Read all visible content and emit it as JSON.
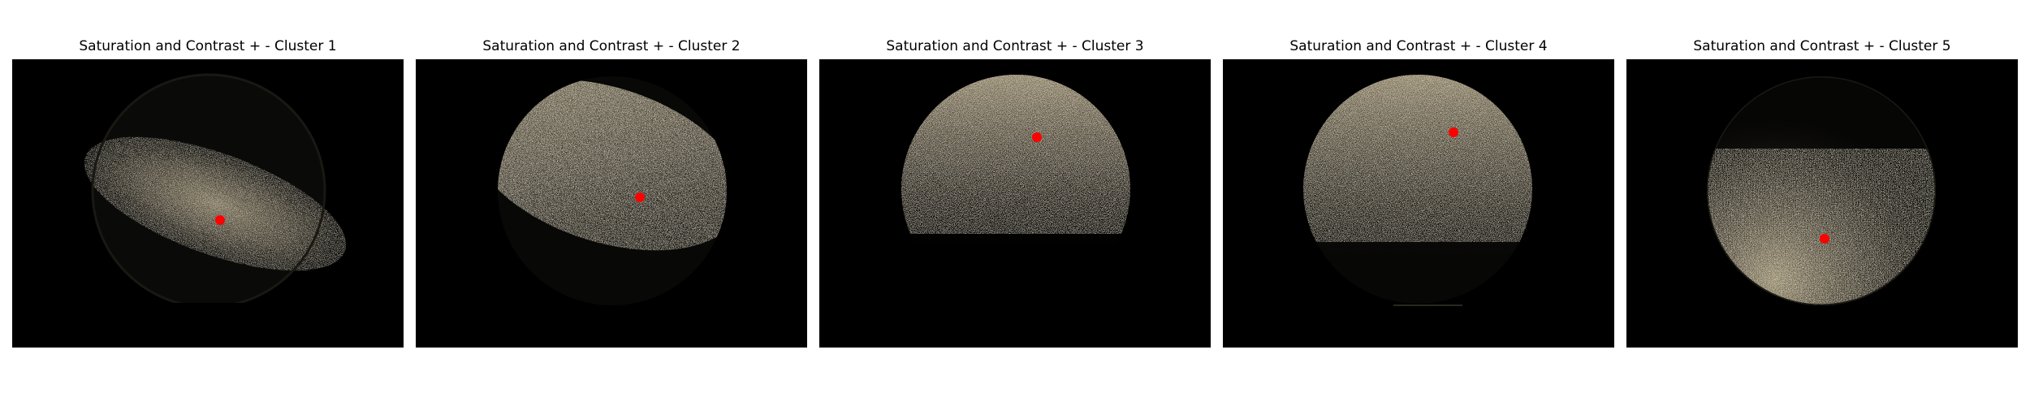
{
  "figure": {
    "panels": [
      {
        "title": "Saturation and Contrast + - Cluster 1",
        "blob": "lower-band",
        "dot_color": "#ff0000"
      },
      {
        "title": "Saturation and Contrast + - Cluster 2",
        "blob": "upper-band",
        "dot_color": "#ff0000"
      },
      {
        "title": "Saturation and Contrast + - Cluster 3",
        "blob": "top-cap",
        "dot_color": "#ff0000"
      },
      {
        "title": "Saturation and Contrast + - Cluster 4",
        "blob": "top-cap",
        "dot_color": "#ff0000"
      },
      {
        "title": "Saturation and Contrast + - Cluster 5",
        "blob": "bottom-left",
        "dot_color": "#ff0000"
      }
    ],
    "colors": {
      "background": "#000000",
      "speckle": "#c8bb98",
      "marker": "#ff0000"
    }
  }
}
